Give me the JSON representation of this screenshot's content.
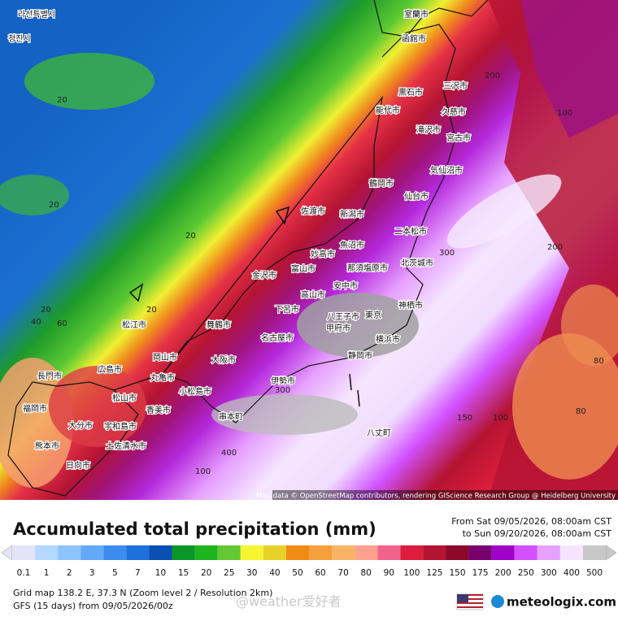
{
  "map": {
    "attribution": "Map data © OpenStreetMap contributors, rendering GIScience Research Group @ Heidelberg University",
    "place_labels": [
      "라선특별시",
      "청진시",
      "室蘭市",
      "函館市",
      "三沢市",
      "黒石市",
      "能代市",
      "久慈市",
      "滝沢市",
      "宮古市",
      "鶴岡市",
      "気仙沼市",
      "仙台市",
      "佐渡市",
      "新潟市",
      "二本松市",
      "妙高市",
      "魚沼市",
      "那須塩原市",
      "北茨城市",
      "富山市",
      "金沢市",
      "高山市",
      "安中市",
      "八王子市",
      "東京",
      "横浜市",
      "神栖市",
      "甲府市",
      "静岡市",
      "名古屋市",
      "伊勢市",
      "大阪市",
      "舞鶴市",
      "松江市",
      "岡山市",
      "広島市",
      "丸亀市",
      "松山市",
      "香美市",
      "福岡市",
      "長門市",
      "大分市",
      "宇和島市",
      "熊本市",
      "土佐清水市",
      "日向市",
      "小松島市",
      "串本町",
      "八丈町",
      "下呂市"
    ],
    "contour_labels": [
      20,
      20,
      20,
      20,
      40,
      60,
      20,
      300,
      400,
      200,
      100,
      200,
      300,
      100,
      80,
      150,
      100,
      80
    ]
  },
  "header": {
    "title": "Accumulated total precipitation (mm)",
    "from": "From Sat 09/05/2026, 08:00am CST",
    "to": "to Sun 09/20/2026, 08:00am CST"
  },
  "legend": {
    "values": [
      0.1,
      1,
      2,
      3,
      5,
      7,
      10,
      15,
      20,
      25,
      30,
      40,
      50,
      60,
      70,
      80,
      90,
      100,
      125,
      150,
      175,
      200,
      250,
      300,
      400,
      500
    ],
    "colors": [
      "#e4e4f6",
      "#b4d8ff",
      "#8cc4ff",
      "#64a8f8",
      "#3c8cf0",
      "#1e70dc",
      "#0a50b4",
      "#0a9628",
      "#1eb41e",
      "#64c832",
      "#f5f532",
      "#e6d228",
      "#f08c14",
      "#f5a03c",
      "#f8b464",
      "#ffa08c",
      "#f0648c",
      "#dc1e3c",
      "#b41432",
      "#8c0a28",
      "#78006e",
      "#a000c8",
      "#d250ff",
      "#e6a0ff",
      "#f5e4ff",
      "#c8c8c8"
    ]
  },
  "footer": {
    "grid": "Grid map 138.2 E, 37.3 N (Zoom level 2 / Resolution 2km)",
    "model": "GFS (15 days) from  09/05/2026/00z",
    "watermark": "@weather爱好者",
    "brand": "meteologix.com"
  }
}
